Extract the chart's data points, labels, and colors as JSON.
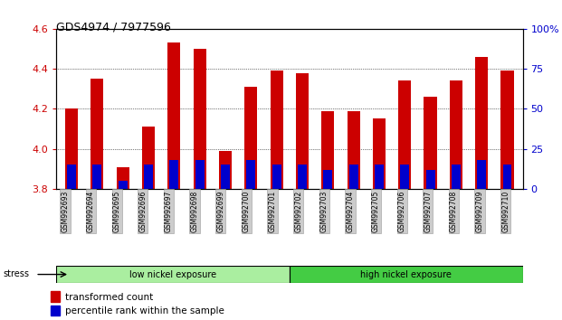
{
  "title": "GDS4974 / 7977596",
  "samples": [
    "GSM992693",
    "GSM992694",
    "GSM992695",
    "GSM992696",
    "GSM992697",
    "GSM992698",
    "GSM992699",
    "GSM992700",
    "GSM992701",
    "GSM992702",
    "GSM992703",
    "GSM992704",
    "GSM992705",
    "GSM992706",
    "GSM992707",
    "GSM992708",
    "GSM992709",
    "GSM992710"
  ],
  "transformed_count": [
    4.2,
    4.35,
    3.91,
    4.11,
    4.53,
    4.5,
    3.99,
    4.31,
    4.39,
    4.38,
    4.19,
    4.19,
    4.15,
    4.34,
    4.26,
    4.34,
    4.46,
    4.39
  ],
  "percentile_rank_pct": [
    15,
    15,
    5,
    15,
    18,
    18,
    15,
    18,
    15,
    15,
    12,
    15,
    15,
    15,
    12,
    15,
    18,
    15
  ],
  "bar_color_red": "#cc0000",
  "bar_color_blue": "#0000cc",
  "ylim_left": [
    3.8,
    4.6
  ],
  "ylim_right": [
    0,
    100
  ],
  "groups": [
    {
      "label": "low nickel exposure",
      "start": 0,
      "end": 9,
      "color": "#aaeea0"
    },
    {
      "label": "high nickel exposure",
      "start": 9,
      "end": 18,
      "color": "#44cc44"
    }
  ],
  "group_label": "stress",
  "legend_red": "transformed count",
  "legend_blue": "percentile rank within the sample",
  "ylabel_left_color": "#cc0000",
  "ylabel_right_color": "#0000cc",
  "yticks_left": [
    3.8,
    4.0,
    4.2,
    4.4,
    4.6
  ],
  "yticks_right": [
    0,
    25,
    50,
    75,
    100
  ],
  "background_color": "#ffffff",
  "tick_label_bg": "#cccccc"
}
